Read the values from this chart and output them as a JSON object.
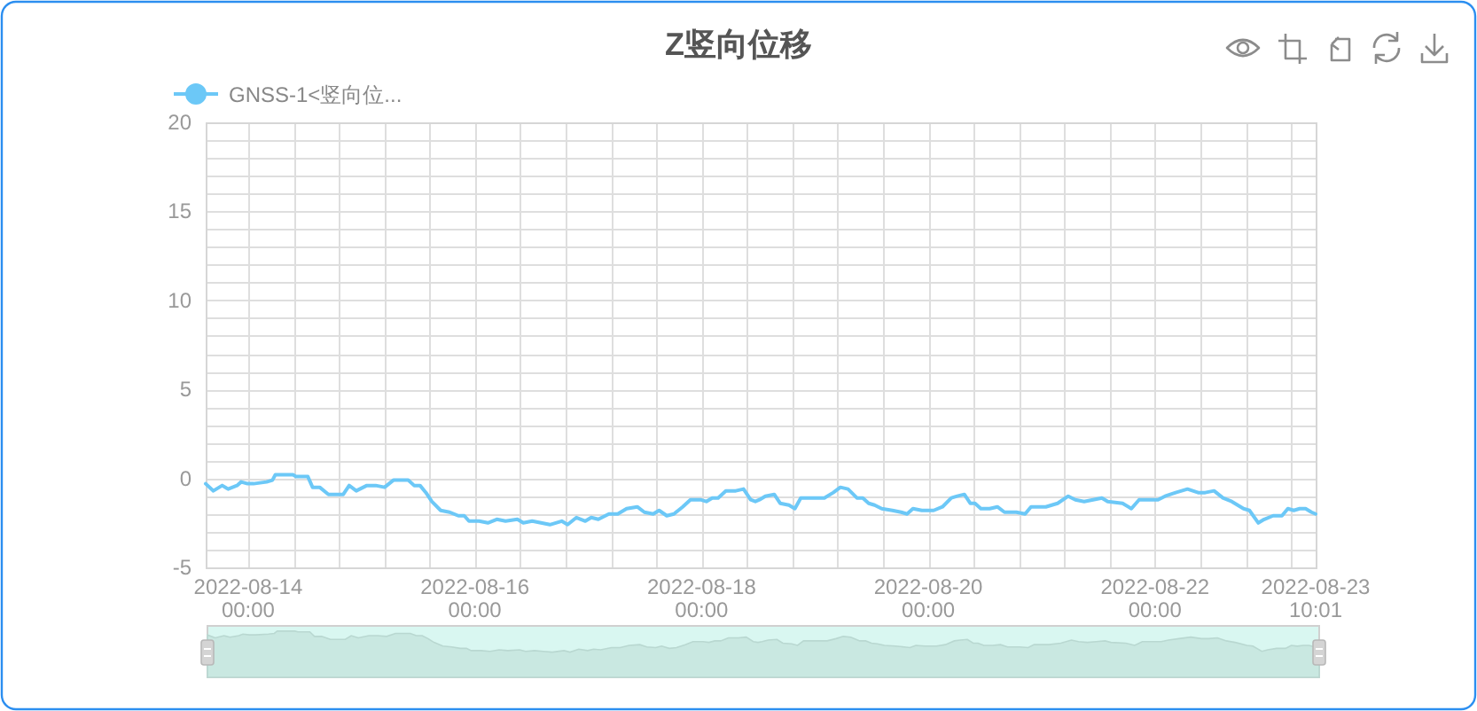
{
  "chart_data": {
    "type": "line",
    "title": "Z竖向位移",
    "x": [
      "2022-08-13T15:00",
      "2022-08-13T16:38",
      "2022-08-13T18:30",
      "2022-08-13T19:45",
      "2022-08-13T21:38",
      "2022-08-13T22:30",
      "2022-08-13T23:53",
      "2022-08-14T01:08",
      "2022-08-14T03:53",
      "2022-08-14T05:08",
      "2022-08-14T05:45",
      "2022-08-14T09:30",
      "2022-08-14T10:08",
      "2022-08-14T12:38",
      "2022-08-14T13:38",
      "2022-08-14T15:08",
      "2022-08-14T17:00",
      "2022-08-14T18:53",
      "2022-08-14T20:08",
      "2022-08-14T21:23",
      "2022-08-14T22:53",
      "2022-08-15T01:08",
      "2022-08-15T03:00",
      "2022-08-15T04:53",
      "2022-08-15T06:45",
      "2022-08-15T09:53",
      "2022-08-15T11:08",
      "2022-08-15T12:23",
      "2022-08-15T13:38",
      "2022-08-15T14:53",
      "2022-08-15T16:45",
      "2022-08-15T18:38",
      "2022-08-15T20:30",
      "2022-08-15T21:45",
      "2022-08-15T22:45",
      "2022-08-16T00:53",
      "2022-08-16T02:45",
      "2022-08-16T04:38",
      "2022-08-16T06:30",
      "2022-08-16T09:00",
      "2022-08-16T10:15",
      "2022-08-16T12:08",
      "2022-08-16T14:00",
      "2022-08-16T15:53",
      "2022-08-16T18:23",
      "2022-08-16T19:38",
      "2022-08-16T21:30",
      "2022-08-16T23:23",
      "2022-08-17T00:38",
      "2022-08-17T02:08",
      "2022-08-17T04:23",
      "2022-08-17T06:15",
      "2022-08-17T08:08",
      "2022-08-17T10:23",
      "2022-08-17T11:53",
      "2022-08-17T13:45",
      "2022-08-17T15:00",
      "2022-08-17T16:38",
      "2022-08-17T18:08",
      "2022-08-17T20:00",
      "2022-08-17T21:38",
      "2022-08-17T23:45",
      "2022-08-18T01:00",
      "2022-08-18T02:15",
      "2022-08-18T03:30",
      "2022-08-18T05:08",
      "2022-08-18T07:15",
      "2022-08-18T08:53",
      "2022-08-18T10:23",
      "2022-08-18T11:23",
      "2022-08-18T12:15",
      "2022-08-18T13:30",
      "2022-08-18T15:23",
      "2022-08-18T16:38",
      "2022-08-18T18:30",
      "2022-08-18T19:45",
      "2022-08-18T21:00",
      "2022-08-18T22:53",
      "2022-08-19T02:00",
      "2022-08-19T03:53",
      "2022-08-19T05:23",
      "2022-08-19T07:00",
      "2022-08-19T08:53",
      "2022-08-19T10:08",
      "2022-08-19T11:23",
      "2022-08-19T12:38",
      "2022-08-19T14:08",
      "2022-08-19T16:23",
      "2022-08-19T18:15",
      "2022-08-19T19:30",
      "2022-08-19T20:45",
      "2022-08-19T22:38",
      "2022-08-20T01:08",
      "2022-08-20T03:00",
      "2022-08-20T04:53",
      "2022-08-20T06:08",
      "2022-08-20T07:38",
      "2022-08-20T08:53",
      "2022-08-20T09:53",
      "2022-08-20T11:08",
      "2022-08-20T13:00",
      "2022-08-20T14:38",
      "2022-08-20T16:08",
      "2022-08-20T18:38",
      "2022-08-20T20:30",
      "2022-08-20T21:45",
      "2022-08-21T00:53",
      "2022-08-21T03:23",
      "2022-08-21T05:38",
      "2022-08-21T07:08",
      "2022-08-21T09:00",
      "2022-08-21T10:53",
      "2022-08-21T12:45",
      "2022-08-21T14:00",
      "2022-08-21T17:08",
      "2022-08-21T19:00",
      "2022-08-21T20:38",
      "2022-08-21T23:23",
      "2022-08-22T00:38",
      "2022-08-22T02:08",
      "2022-08-22T04:23",
      "2022-08-22T06:53",
      "2022-08-22T09:08",
      "2022-08-22T10:38",
      "2022-08-22T12:30",
      "2022-08-22T14:23",
      "2022-08-22T16:15",
      "2022-08-22T18:45",
      "2022-08-22T20:00",
      "2022-08-22T21:53",
      "2022-08-22T23:08",
      "2022-08-23T01:00",
      "2022-08-23T02:53",
      "2022-08-23T04:08",
      "2022-08-23T05:23",
      "2022-08-23T06:38",
      "2022-08-23T07:53",
      "2022-08-23T09:08",
      "2022-08-23T10:01"
    ],
    "series": [
      {
        "name": "GNSS-1<竖向位...",
        "color": "#6cc8f7",
        "values": [
          -0.3,
          -0.7,
          -0.4,
          -0.6,
          -0.4,
          -0.2,
          -0.3,
          -0.3,
          -0.2,
          -0.1,
          0.2,
          0.2,
          0.1,
          0.1,
          -0.5,
          -0.5,
          -0.9,
          -0.9,
          -0.9,
          -0.4,
          -0.7,
          -0.4,
          -0.4,
          -0.5,
          -0.1,
          -0.1,
          -0.4,
          -0.4,
          -0.8,
          -1.3,
          -1.8,
          -1.9,
          -2.1,
          -2.1,
          -2.4,
          -2.4,
          -2.5,
          -2.3,
          -2.4,
          -2.3,
          -2.5,
          -2.4,
          -2.5,
          -2.6,
          -2.4,
          -2.6,
          -2.2,
          -2.4,
          -2.2,
          -2.3,
          -2.0,
          -2.0,
          -1.7,
          -1.6,
          -1.9,
          -2.0,
          -1.8,
          -2.1,
          -2.0,
          -1.6,
          -1.2,
          -1.2,
          -1.3,
          -1.1,
          -1.1,
          -0.7,
          -0.7,
          -0.6,
          -1.2,
          -1.3,
          -1.2,
          -1.0,
          -0.9,
          -1.4,
          -1.5,
          -1.7,
          -1.1,
          -1.1,
          -1.1,
          -0.8,
          -0.5,
          -0.6,
          -1.1,
          -1.1,
          -1.4,
          -1.5,
          -1.7,
          -1.8,
          -1.9,
          -2.0,
          -1.7,
          -1.8,
          -1.8,
          -1.6,
          -1.1,
          -1.0,
          -0.9,
          -1.4,
          -1.4,
          -1.7,
          -1.7,
          -1.6,
          -1.9,
          -1.9,
          -2.0,
          -1.6,
          -1.6,
          -1.4,
          -1.0,
          -1.2,
          -1.3,
          -1.2,
          -1.1,
          -1.3,
          -1.4,
          -1.7,
          -1.2,
          -1.2,
          -1.2,
          -1.0,
          -0.8,
          -0.6,
          -0.8,
          -0.8,
          -0.7,
          -1.1,
          -1.3,
          -1.7,
          -1.8,
          -2.5,
          -2.3,
          -2.1,
          -2.1,
          -1.7,
          -1.8,
          -1.7,
          -1.7,
          -1.9,
          -2.0
        ]
      }
    ],
    "xlim": [
      "2022-08-13T15:00",
      "2022-08-23T10:01"
    ],
    "ylim": [
      -5,
      20
    ],
    "xticks": [
      {
        "value": "2022-08-14",
        "label": "2022-08-14\n00:00"
      },
      {
        "value": "2022-08-14T09:36",
        "label": null
      },
      {
        "value": "2022-08-14T19:12",
        "label": null
      },
      {
        "value": "2022-08-15T04:48",
        "label": null
      },
      {
        "value": "2022-08-15T14:24",
        "label": null
      },
      {
        "value": "2022-08-16",
        "label": "2022-08-16\n00:00"
      },
      {
        "value": "2022-08-16T09:36",
        "label": null
      },
      {
        "value": "2022-08-16T19:12",
        "label": null
      },
      {
        "value": "2022-08-17T04:48",
        "label": null
      },
      {
        "value": "2022-08-17T14:24",
        "label": null
      },
      {
        "value": "2022-08-18",
        "label": "2022-08-18\n00:00"
      },
      {
        "value": "2022-08-18T09:36",
        "label": null
      },
      {
        "value": "2022-08-18T19:12",
        "label": null
      },
      {
        "value": "2022-08-19T04:48",
        "label": null
      },
      {
        "value": "2022-08-19T14:24",
        "label": null
      },
      {
        "value": "2022-08-20",
        "label": "2022-08-20\n00:00"
      },
      {
        "value": "2022-08-20T09:36",
        "label": null
      },
      {
        "value": "2022-08-20T19:12",
        "label": null
      },
      {
        "value": "2022-08-21T04:48",
        "label": null
      },
      {
        "value": "2022-08-21T14:24",
        "label": null
      },
      {
        "value": "2022-08-22",
        "label": "2022-08-22\n00:00"
      },
      {
        "value": "2022-08-22T09:36",
        "label": null
      },
      {
        "value": "2022-08-22T19:12",
        "label": null
      },
      {
        "value": "2022-08-23T04:48",
        "label": null
      },
      {
        "value": "2022-08-23T10:01",
        "label": "2022-08-23\n10:01"
      }
    ],
    "yticks": [
      -5,
      {
        "value": -4,
        "label": null
      },
      {
        "value": -3,
        "label": null
      },
      {
        "value": -2,
        "label": null
      },
      {
        "value": -1,
        "label": null
      },
      0,
      {
        "value": 1,
        "label": null
      },
      {
        "value": 2,
        "label": null
      },
      {
        "value": 3,
        "label": null
      },
      {
        "value": 4,
        "label": null
      },
      5,
      {
        "value": 6,
        "label": null
      },
      {
        "value": 7,
        "label": null
      },
      {
        "value": 8,
        "label": null
      },
      {
        "value": 9,
        "label": null
      },
      10,
      {
        "value": 11,
        "label": null
      },
      {
        "value": 12,
        "label": null
      },
      {
        "value": 13,
        "label": null
      },
      {
        "value": 14,
        "label": null
      },
      15,
      {
        "value": 16,
        "label": null
      },
      {
        "value": 17,
        "label": null
      },
      {
        "value": 18,
        "label": null
      },
      {
        "value": 19,
        "label": null
      },
      20
    ],
    "grid": true,
    "legend": "top left"
  }
}
